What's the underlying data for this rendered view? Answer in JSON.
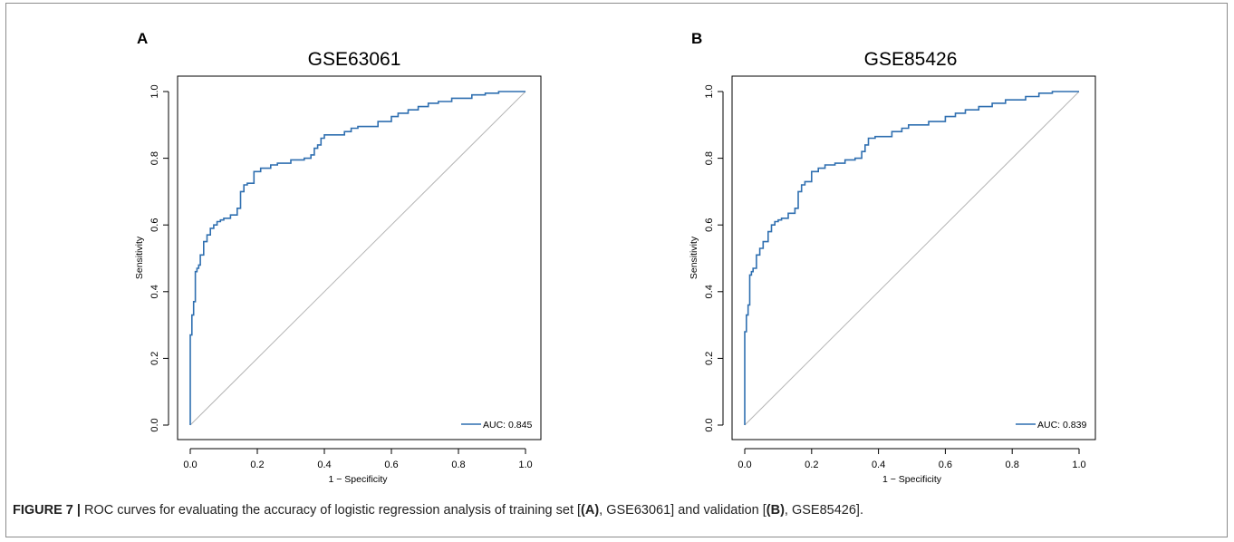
{
  "figure": {
    "caption": {
      "label": "FIGURE 7 |",
      "text_1": " ROC curves for evaluating the accuracy of logistic regression analysis of training set [",
      "ref_a": "(A)",
      "text_2": ", GSE63061] and validation [",
      "ref_b": "(B)",
      "text_3": ", GSE85426]."
    }
  },
  "colors": {
    "curve": "#2f6fb0",
    "diagonal": "#b5b5b5",
    "axis": "#000000"
  },
  "chart_data": [
    {
      "type": "line",
      "panel_label": "A",
      "title": "GSE63061",
      "xlabel": "1 − Specificity",
      "ylabel": "Sensitivity",
      "xlim": [
        0,
        1
      ],
      "ylim": [
        0,
        1
      ],
      "xticks": [
        "0.0",
        "0.2",
        "0.4",
        "0.6",
        "0.8",
        "1.0"
      ],
      "yticks": [
        "0.0",
        "0.2",
        "0.4",
        "0.6",
        "0.8",
        "1.0"
      ],
      "grid": false,
      "legend_position": "bottom-right",
      "series": [
        {
          "name": "AUC: 0.845",
          "x": [
            0,
            0,
            0.005,
            0.005,
            0.01,
            0.01,
            0.015,
            0.015,
            0.02,
            0.02,
            0.025,
            0.025,
            0.03,
            0.03,
            0.04,
            0.04,
            0.05,
            0.05,
            0.06,
            0.06,
            0.07,
            0.07,
            0.08,
            0.08,
            0.09,
            0.09,
            0.1,
            0.1,
            0.12,
            0.12,
            0.14,
            0.14,
            0.15,
            0.15,
            0.16,
            0.16,
            0.17,
            0.17,
            0.19,
            0.19,
            0.21,
            0.21,
            0.24,
            0.24,
            0.26,
            0.26,
            0.3,
            0.3,
            0.34,
            0.34,
            0.36,
            0.36,
            0.37,
            0.37,
            0.38,
            0.38,
            0.39,
            0.39,
            0.4,
            0.4,
            0.46,
            0.46,
            0.48,
            0.48,
            0.5,
            0.5,
            0.56,
            0.56,
            0.6,
            0.6,
            0.62,
            0.62,
            0.65,
            0.65,
            0.68,
            0.68,
            0.71,
            0.71,
            0.74,
            0.74,
            0.78,
            0.78,
            0.84,
            0.84,
            0.88,
            0.88,
            0.92,
            0.92,
            1.0
          ],
          "y": [
            0,
            0.27,
            0.27,
            0.33,
            0.33,
            0.37,
            0.37,
            0.46,
            0.46,
            0.47,
            0.47,
            0.48,
            0.48,
            0.51,
            0.51,
            0.55,
            0.55,
            0.57,
            0.57,
            0.59,
            0.59,
            0.6,
            0.6,
            0.61,
            0.61,
            0.615,
            0.615,
            0.62,
            0.62,
            0.63,
            0.63,
            0.65,
            0.65,
            0.7,
            0.7,
            0.72,
            0.72,
            0.725,
            0.725,
            0.76,
            0.76,
            0.77,
            0.77,
            0.78,
            0.78,
            0.785,
            0.785,
            0.795,
            0.795,
            0.8,
            0.8,
            0.81,
            0.81,
            0.83,
            0.83,
            0.84,
            0.84,
            0.86,
            0.86,
            0.87,
            0.87,
            0.88,
            0.88,
            0.89,
            0.89,
            0.895,
            0.895,
            0.91,
            0.91,
            0.925,
            0.925,
            0.935,
            0.935,
            0.945,
            0.945,
            0.955,
            0.955,
            0.965,
            0.965,
            0.97,
            0.97,
            0.98,
            0.98,
            0.99,
            0.99,
            0.995,
            0.995,
            1.0,
            1.0
          ]
        }
      ]
    },
    {
      "type": "line",
      "panel_label": "B",
      "title": "GSE85426",
      "xlabel": "1 − Specificity",
      "ylabel": "Sensitivity",
      "xlim": [
        0,
        1
      ],
      "ylim": [
        0,
        1
      ],
      "xticks": [
        "0.0",
        "0.2",
        "0.4",
        "0.6",
        "0.8",
        "1.0"
      ],
      "yticks": [
        "0.0",
        "0.2",
        "0.4",
        "0.6",
        "0.8",
        "1.0"
      ],
      "grid": false,
      "legend_position": "bottom-right",
      "series": [
        {
          "name": "AUC: 0.839",
          "x": [
            0,
            0,
            0.005,
            0.005,
            0.01,
            0.01,
            0.015,
            0.015,
            0.02,
            0.02,
            0.025,
            0.025,
            0.035,
            0.035,
            0.045,
            0.045,
            0.055,
            0.055,
            0.07,
            0.07,
            0.08,
            0.08,
            0.09,
            0.09,
            0.1,
            0.1,
            0.11,
            0.11,
            0.13,
            0.13,
            0.15,
            0.15,
            0.16,
            0.16,
            0.17,
            0.17,
            0.18,
            0.18,
            0.2,
            0.2,
            0.22,
            0.22,
            0.24,
            0.24,
            0.27,
            0.27,
            0.3,
            0.3,
            0.33,
            0.33,
            0.35,
            0.35,
            0.36,
            0.36,
            0.37,
            0.37,
            0.39,
            0.39,
            0.44,
            0.44,
            0.47,
            0.47,
            0.49,
            0.49,
            0.55,
            0.55,
            0.6,
            0.6,
            0.63,
            0.63,
            0.66,
            0.66,
            0.7,
            0.7,
            0.74,
            0.74,
            0.78,
            0.78,
            0.84,
            0.84,
            0.88,
            0.88,
            0.92,
            0.92,
            1.0
          ],
          "y": [
            0,
            0.28,
            0.28,
            0.33,
            0.33,
            0.36,
            0.36,
            0.45,
            0.45,
            0.46,
            0.46,
            0.47,
            0.47,
            0.51,
            0.51,
            0.53,
            0.53,
            0.55,
            0.55,
            0.58,
            0.58,
            0.6,
            0.6,
            0.61,
            0.61,
            0.615,
            0.615,
            0.62,
            0.62,
            0.635,
            0.635,
            0.65,
            0.65,
            0.7,
            0.7,
            0.72,
            0.72,
            0.73,
            0.73,
            0.76,
            0.76,
            0.77,
            0.77,
            0.78,
            0.78,
            0.785,
            0.785,
            0.795,
            0.795,
            0.8,
            0.8,
            0.82,
            0.82,
            0.84,
            0.84,
            0.86,
            0.86,
            0.865,
            0.865,
            0.88,
            0.88,
            0.89,
            0.89,
            0.9,
            0.9,
            0.91,
            0.91,
            0.925,
            0.925,
            0.935,
            0.935,
            0.945,
            0.945,
            0.955,
            0.955,
            0.965,
            0.965,
            0.975,
            0.975,
            0.985,
            0.985,
            0.995,
            0.995,
            1.0,
            1.0
          ]
        }
      ]
    }
  ]
}
